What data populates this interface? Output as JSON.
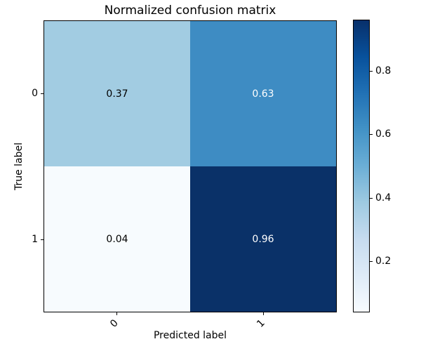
{
  "chart_data": {
    "type": "heatmap",
    "title": "Normalized confusion matrix",
    "xlabel": "Predicted label",
    "ylabel": "True label",
    "x_tick_labels": [
      "0",
      "1"
    ],
    "y_tick_labels": [
      "0",
      "1"
    ],
    "matrix": [
      [
        0.37,
        0.63
      ],
      [
        0.04,
        0.96
      ]
    ],
    "vmin": 0.04,
    "vmax": 0.96,
    "colormap": "Blues",
    "grid": false,
    "legend_position": "colorbar-right",
    "cells": [
      {
        "row": 0,
        "col": 0,
        "label": "0.37",
        "bg": "#a2cce2",
        "fg": "#000000"
      },
      {
        "row": 0,
        "col": 1,
        "label": "0.63",
        "bg": "#3e8cc3",
        "fg": "#ffffff"
      },
      {
        "row": 1,
        "col": 0,
        "label": "0.04",
        "bg": "#f7fbfe",
        "fg": "#000000"
      },
      {
        "row": 1,
        "col": 1,
        "label": "0.96",
        "bg": "#0a3168",
        "fg": "#ffffff"
      }
    ],
    "colorbar": {
      "tick_labels": [
        "0.8",
        "0.6",
        "0.4",
        "0.2"
      ],
      "tick_values": [
        0.8,
        0.6,
        0.4,
        0.2
      ],
      "gradient_stops": [
        "#f7fbff",
        "#deebf7",
        "#c6dbef",
        "#9ecae1",
        "#6baed6",
        "#4292c6",
        "#2171b5",
        "#08519c",
        "#08306b"
      ]
    }
  },
  "colors": {
    "background": "#ffffff",
    "axes_border": "#000000",
    "text": "#000000"
  }
}
